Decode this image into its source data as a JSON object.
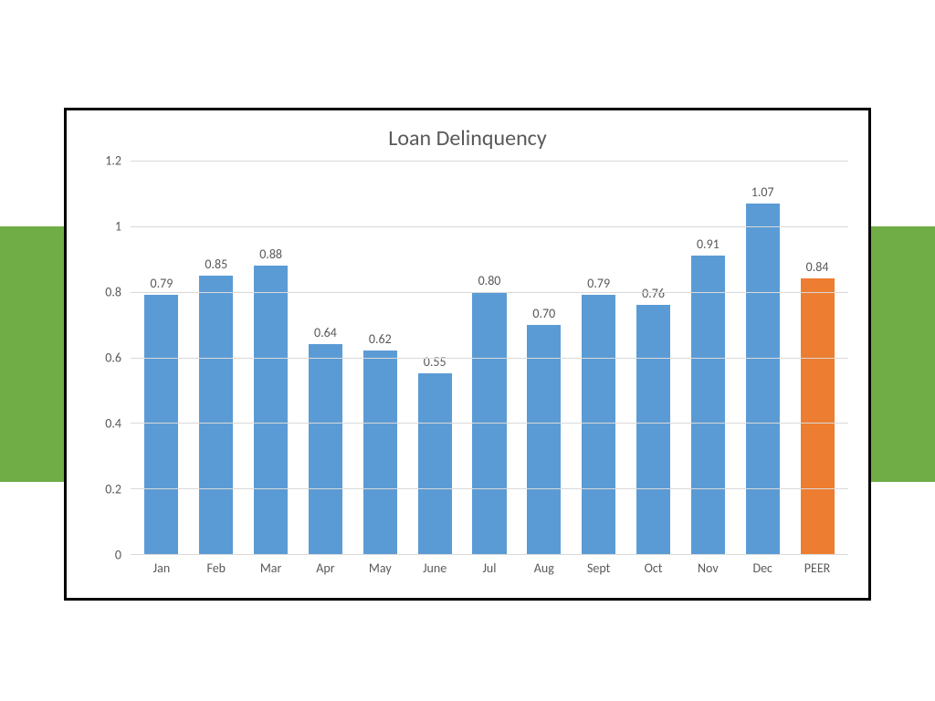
{
  "page": {
    "background_color": "#ffffff",
    "accent_band_color": "#70ad47",
    "frame_border_color": "#000000"
  },
  "chart": {
    "type": "bar",
    "title": "Loan Delinquency",
    "title_color": "#595959",
    "title_fontsize": 24,
    "background_color": "#ffffff",
    "grid_color": "#d9d9d9",
    "label_color": "#595959",
    "label_fontsize": 14,
    "ylim": [
      0,
      1.2
    ],
    "ytick_step": 0.2,
    "yticks": [
      0,
      0.2,
      0.4,
      0.6,
      0.8,
      1,
      1.2
    ],
    "ytick_labels": [
      "0",
      "0.2",
      "0.4",
      "0.6",
      "0.8",
      "1",
      "1.2"
    ],
    "bar_width": 0.62,
    "categories": [
      "Jan",
      "Feb",
      "Mar",
      "Apr",
      "May",
      "June",
      "Jul",
      "Aug",
      "Sept",
      "Oct",
      "Nov",
      "Dec",
      "PEER"
    ],
    "values": [
      0.79,
      0.85,
      0.88,
      0.64,
      0.62,
      0.55,
      0.8,
      0.7,
      0.79,
      0.76,
      0.91,
      1.07,
      0.84
    ],
    "value_labels": [
      "0.79",
      "0.85",
      "0.88",
      "0.64",
      "0.62",
      "0.55",
      "0.80",
      "0.70",
      "0.79",
      "0.76",
      "0.91",
      "1.07",
      "0.84"
    ],
    "bar_colors": [
      "#5b9bd5",
      "#5b9bd5",
      "#5b9bd5",
      "#5b9bd5",
      "#5b9bd5",
      "#5b9bd5",
      "#5b9bd5",
      "#5b9bd5",
      "#5b9bd5",
      "#5b9bd5",
      "#5b9bd5",
      "#5b9bd5",
      "#ed7d31"
    ]
  }
}
